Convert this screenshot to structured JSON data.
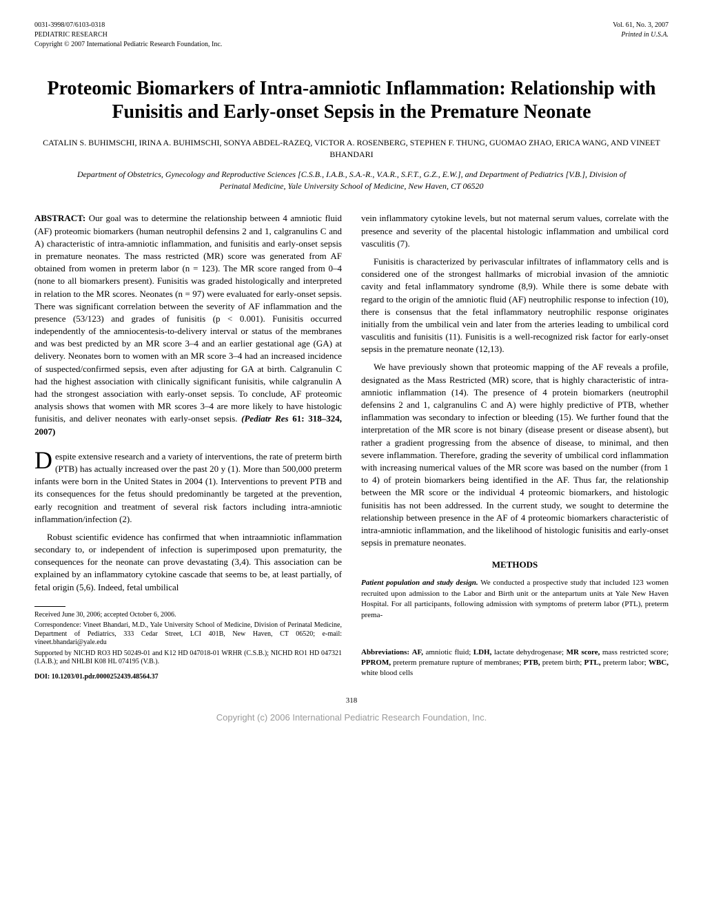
{
  "header": {
    "left_line1": "0031-3998/07/6103-0318",
    "left_line2": "PEDIATRIC RESEARCH",
    "left_line3": "Copyright © 2007 International Pediatric Research Foundation, Inc.",
    "right_line1": "Vol. 61, No. 3, 2007",
    "right_line2": "Printed in U.S.A."
  },
  "title": "Proteomic Biomarkers of Intra-amniotic Inflammation: Relationship with Funisitis and Early-onset Sepsis in the Premature Neonate",
  "authors": "CATALIN S. BUHIMSCHI, IRINA A. BUHIMSCHI, SONYA ABDEL-RAZEQ, VICTOR A. ROSENBERG, STEPHEN F. THUNG, GUOMAO ZHAO, ERICA WANG, AND VINEET BHANDARI",
  "affiliation": "Department of Obstetrics, Gynecology and Reproductive Sciences [C.S.B., I.A.B., S.A.-R., V.A.R., S.F.T., G.Z., E.W.], and Department of Pediatrics [V.B.], Division of Perinatal Medicine, Yale University School of Medicine, New Haven, CT 06520",
  "abstract": {
    "label": "ABSTRACT:",
    "text": " Our goal was to determine the relationship between 4 amniotic fluid (AF) proteomic biomarkers (human neutrophil defensins 2 and 1, calgranulins C and A) characteristic of intra-amniotic inflammation, and funisitis and early-onset sepsis in premature neonates. The mass restricted (MR) score was generated from AF obtained from women in preterm labor (n = 123). The MR score ranged from 0–4 (none to all biomarkers present). Funisitis was graded histologically and interpreted in relation to the MR scores. Neonates (n = 97) were evaluated for early-onset sepsis. There was significant correlation between the severity of AF inflammation and the presence (53/123) and grades of funisitis (p < 0.001). Funisitis occurred independently of the amniocentesis-to-delivery interval or status of the membranes and was best predicted by an MR score 3–4 and an earlier gestational age (GA) at delivery. Neonates born to women with an MR score 3–4 had an increased incidence of suspected/confirmed sepsis, even after adjusting for GA at birth. Calgranulin C had the highest association with clinically significant funisitis, while calgranulin A had the strongest association with early-onset sepsis. To conclude, AF proteomic analysis shows that women with MR scores 3–4 are more likely to have histologic funisitis, and deliver neonates with early-onset sepsis. ",
    "cite": "(Pediatr Res",
    "cite2": " 61: 318–324, 2007)"
  },
  "body": {
    "p1_drop": "D",
    "p1": "espite extensive research and a variety of interventions, the rate of preterm birth (PTB) has actually increased over the past 20 y (1). More than 500,000 preterm infants were born in the United States in 2004 (1). Interventions to prevent PTB and its consequences for the fetus should predominantly be targeted at the prevention, early recognition and treatment of several risk factors including intra-amniotic inflammation/infection (2).",
    "p2": "Robust scientific evidence has confirmed that when intraamniotic inflammation secondary to, or independent of infection is superimposed upon prematurity, the consequences for the neonate can prove devastating (3,4). This association can be explained by an inflammatory cytokine cascade that seems to be, at least partially, of fetal origin (5,6). Indeed, fetal umbilical",
    "p3": "vein inflammatory cytokine levels, but not maternal serum values, correlate with the presence and severity of the placental histologic inflammation and umbilical cord vasculitis (7).",
    "p4": "Funisitis is characterized by perivascular infiltrates of inflammatory cells and is considered one of the strongest hallmarks of microbial invasion of the amniotic cavity and fetal inflammatory syndrome (8,9). While there is some debate with regard to the origin of the amniotic fluid (AF) neutrophilic response to infection (10), there is consensus that the fetal inflammatory neutrophilic response originates initially from the umbilical vein and later from the arteries leading to umbilical cord vasculitis and funisitis (11). Funisitis is a well-recognized risk factor for early-onset sepsis in the premature neonate (12,13).",
    "p5": "We have previously shown that proteomic mapping of the AF reveals a profile, designated as the Mass Restricted (MR) score, that is highly characteristic of intra-amniotic inflammation (14). The presence of 4 protein biomarkers (neutrophil defensins 2 and 1, calgranulins C and A) were highly predictive of PTB, whether inflammation was secondary to infection or bleeding (15). We further found that the interpretation of the MR score is not binary (disease present or disease absent), but rather a gradient progressing from the absence of disease, to minimal, and then severe inflammation. Therefore, grading the severity of umbilical cord inflammation with increasing numerical values of the MR score was based on the number (from 1 to 4) of protein biomarkers being identified in the AF. Thus far, the relationship between the MR score or the individual 4 proteomic biomarkers, and histologic funisitis has not been addressed. In the current study, we sought to determine the relationship between presence in the AF of 4 proteomic biomarkers characteristic of intra-amniotic inflammation, and the likelihood of histologic funisitis and early-onset sepsis in premature neonates."
  },
  "methods": {
    "header": "METHODS",
    "p1_label": "Patient population and study design.",
    "p1_text": " We conducted a prospective study that included 123 women recruited upon admission to the Labor and Birth unit or the antepartum units at Yale New Haven Hospital. For all participants, following admission with symptoms of preterm labor (PTL), preterm prema-"
  },
  "footnotes": {
    "received": "Received June 30, 2006; accepted October 6, 2006.",
    "correspondence": "Correspondence: Vineet Bhandari, M.D., Yale University School of Medicine, Division of Perinatal Medicine, Department of Pediatrics, 333 Cedar Street, LCI 401B, New Haven, CT 06520; e-mail: vineet.bhandari@yale.edu",
    "supported": "Supported by NICHD RO3 HD 50249-01 and K12 HD 047018-01 WRHR (C.S.B.); NICHD RO1 HD 047321 (I.A.B.); and NHLBI K08 HL 074195 (V.B.).",
    "doi": "DOI: 10.1203/01.pdr.0000252439.48564.37"
  },
  "abbreviations": "Abbreviations: AF, amniotic fluid; LDH, lactate dehydrogenase; MR score, mass restricted score; PPROM, preterm premature rupture of membranes; PTB, pretem birth; PTL, preterm labor; WBC, white blood cells",
  "page_number": "318",
  "copyright_footer": "Copyright (c) 2006 International Pediatric Research Foundation, Inc."
}
